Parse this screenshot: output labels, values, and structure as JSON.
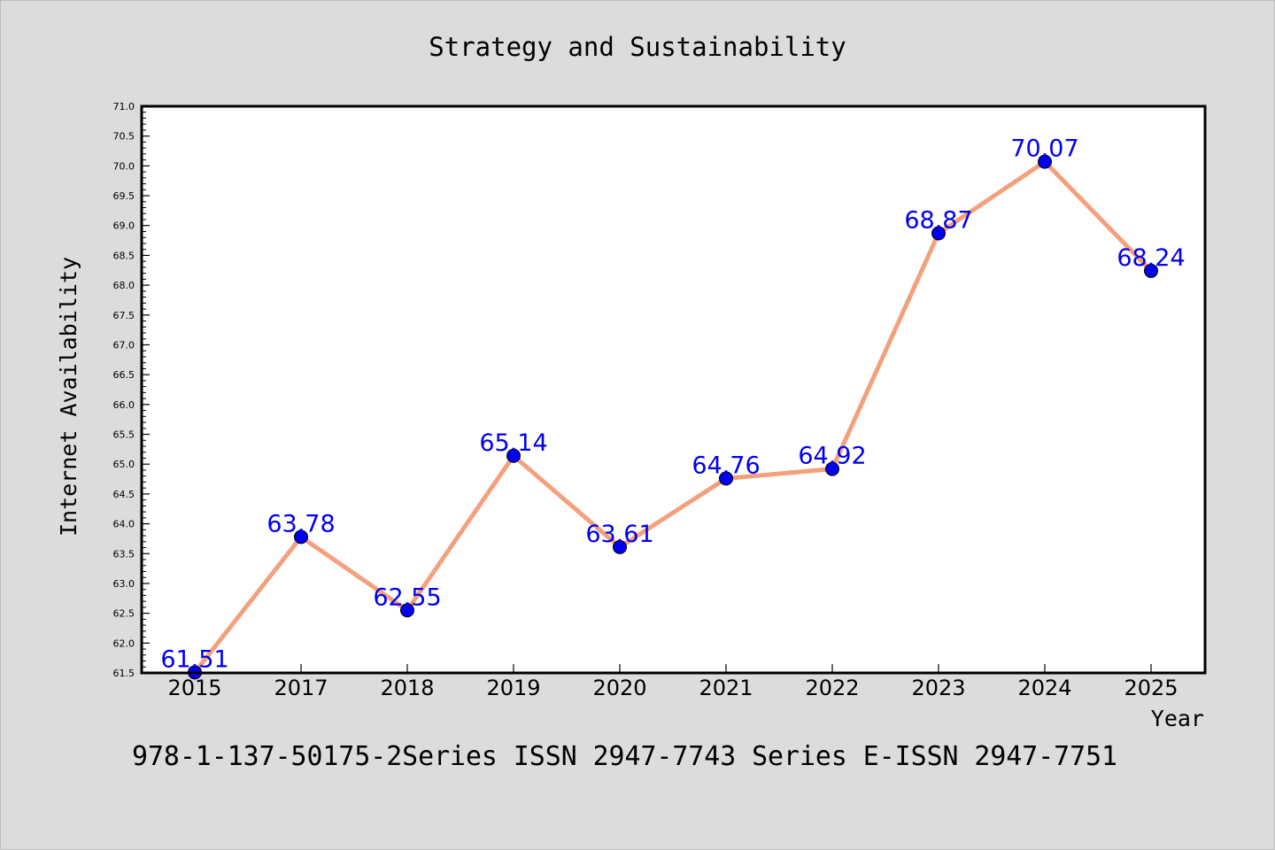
{
  "chart_data": {
    "type": "line",
    "title": "Strategy and Sustainability",
    "xlabel": "Year",
    "ylabel": "Internet Availability",
    "categories": [
      "2015",
      "2017",
      "2018",
      "2019",
      "2020",
      "2021",
      "2022",
      "2023",
      "2024",
      "2025"
    ],
    "series": [
      {
        "values": [
          61.51,
          63.78,
          62.55,
          65.14,
          63.61,
          64.76,
          64.92,
          68.87,
          70.07,
          68.24
        ]
      }
    ],
    "data_labels": [
      "61.51",
      "63.78",
      "62.55",
      "65.14",
      "63.61",
      "64.76",
      "64.92",
      "68.87",
      "70.07",
      "68.24"
    ],
    "ylim": [
      61.5,
      71.0
    ],
    "yticks": [
      "61.5",
      "62.0",
      "62.5",
      "63.0",
      "63.5",
      "64.0",
      "64.5",
      "65.0",
      "65.5",
      "66.0",
      "66.5",
      "67.0",
      "67.5",
      "68.0",
      "68.5",
      "69.0",
      "69.5",
      "70.0",
      "70.5",
      "71.0"
    ],
    "grid": false,
    "legend": "none",
    "colors": {
      "line": "#f4a07c",
      "marker": "#0000ee",
      "data_label": "#0000ee",
      "background": "#dcdcdc",
      "plot_background": "#ffffff"
    },
    "footer": "978-1-137-50175-2Series ISSN 2947-7743 Series E-ISSN 2947-7751"
  }
}
